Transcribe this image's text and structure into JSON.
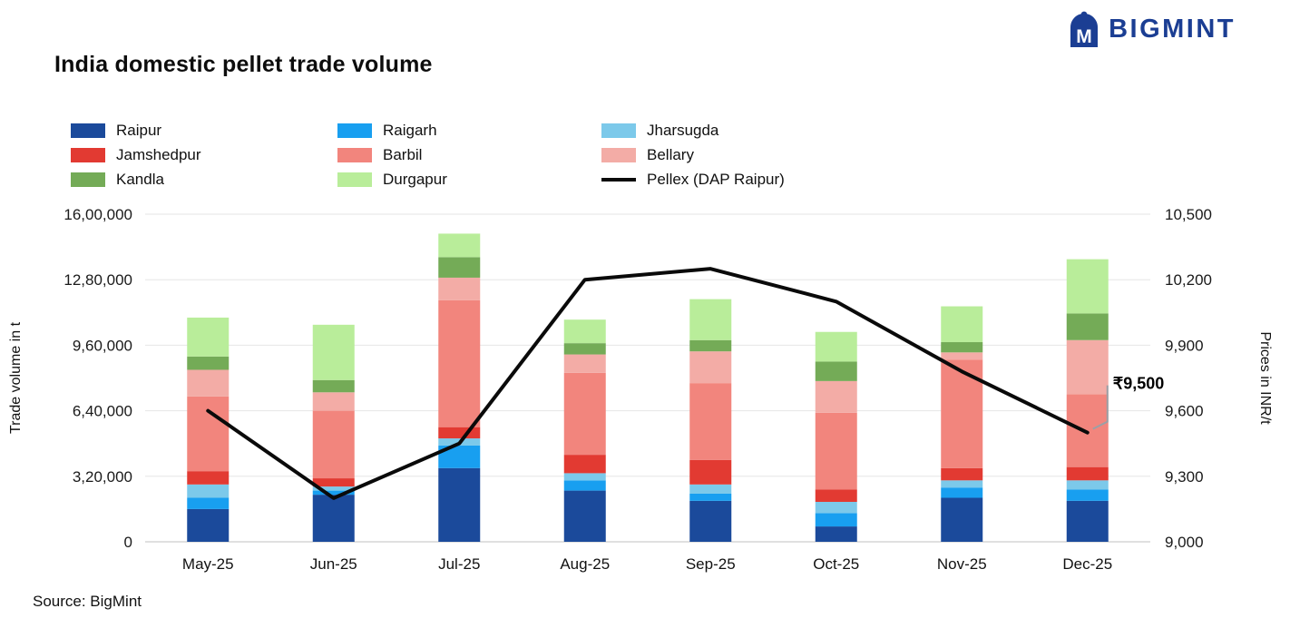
{
  "page": {
    "title": "India domestic pellet trade volume",
    "logo_text": "BIGMINT",
    "logo_color": "#1b3e93",
    "source": "Source: BigMint"
  },
  "legend": {
    "items": [
      {
        "label": "Raipur",
        "color": "#1b4a9b",
        "type": "swatch"
      },
      {
        "label": "Raigarh",
        "color": "#189ff0",
        "type": "swatch"
      },
      {
        "label": "Jharsugda",
        "color": "#7cc9ea",
        "type": "swatch"
      },
      {
        "label": "Jamshedpur",
        "color": "#e23a32",
        "type": "swatch"
      },
      {
        "label": "Barbil",
        "color": "#f2857d",
        "type": "swatch"
      },
      {
        "label": "Bellary",
        "color": "#f3aca6",
        "type": "swatch"
      },
      {
        "label": "Kandla",
        "color": "#74ab57",
        "type": "swatch"
      },
      {
        "label": "Durgapur",
        "color": "#b9ed9a",
        "type": "swatch"
      },
      {
        "label": "Pellex (DAP Raipur)",
        "color": "#0a0a0a",
        "type": "line"
      }
    ]
  },
  "chart_data": {
    "type": "bar",
    "subtype": "stacked-bar-with-line",
    "categories": [
      "May-25",
      "Jun-25",
      "Jul-25",
      "Aug-25",
      "Sep-25",
      "Oct-25",
      "Nov-25",
      "Dec-25"
    ],
    "bar_series": [
      {
        "name": "Raipur",
        "color": "#1b4a9b",
        "values": [
          160000,
          230000,
          360000,
          250000,
          200000,
          75000,
          215000,
          200000
        ]
      },
      {
        "name": "Raigarh",
        "color": "#189ff0",
        "values": [
          55000,
          20000,
          110000,
          50000,
          35000,
          65000,
          50000,
          55000
        ]
      },
      {
        "name": "Jharsugda",
        "color": "#7cc9ea",
        "values": [
          65000,
          20000,
          35000,
          35000,
          45000,
          55000,
          35000,
          45000
        ]
      },
      {
        "name": "Jamshedpur",
        "color": "#e23a32",
        "values": [
          65000,
          40000,
          55000,
          90000,
          120000,
          60000,
          60000,
          65000
        ]
      },
      {
        "name": "Barbil",
        "color": "#f2857d",
        "values": [
          365000,
          330000,
          620000,
          400000,
          375000,
          375000,
          530000,
          355000
        ]
      },
      {
        "name": "Bellary",
        "color": "#f3aca6",
        "values": [
          130000,
          90000,
          110000,
          90000,
          155000,
          155000,
          35000,
          265000
        ]
      },
      {
        "name": "Kandla",
        "color": "#74ab57",
        "values": [
          65000,
          60000,
          100000,
          55000,
          55000,
          95000,
          50000,
          130000
        ]
      },
      {
        "name": "Durgapur",
        "color": "#b9ed9a",
        "values": [
          190000,
          270000,
          115000,
          115000,
          200000,
          145000,
          175000,
          265000
        ]
      }
    ],
    "line_series": {
      "name": "Pellex (DAP Raipur)",
      "color": "#0a0a0a",
      "values": [
        9600,
        9200,
        9450,
        10200,
        10250,
        10100,
        9780,
        9500
      ]
    },
    "y_left": {
      "title": "Trade volume in t",
      "min": 0,
      "max": 1600000,
      "ticks": [
        {
          "value": 0,
          "label": "0"
        },
        {
          "value": 320000,
          "label": "3,20,000"
        },
        {
          "value": 640000,
          "label": "6,40,000"
        },
        {
          "value": 960000,
          "label": "9,60,000"
        },
        {
          "value": 1280000,
          "label": "12,80,000"
        },
        {
          "value": 1600000,
          "label": "16,00,000"
        }
      ]
    },
    "y_right": {
      "title": "Prices in INR/t",
      "min": 9000,
      "max": 10500,
      "ticks": [
        {
          "value": 9000,
          "label": "9,000"
        },
        {
          "value": 9300,
          "label": "9,300"
        },
        {
          "value": 9600,
          "label": "9,600"
        },
        {
          "value": 9900,
          "label": "9,900"
        },
        {
          "value": 10200,
          "label": "10,200"
        },
        {
          "value": 10500,
          "label": "10,500"
        }
      ]
    },
    "annotation": {
      "text": "₹9,500",
      "category_index": 7,
      "value": 9500
    },
    "grid": true,
    "legend_position": "top-left"
  }
}
